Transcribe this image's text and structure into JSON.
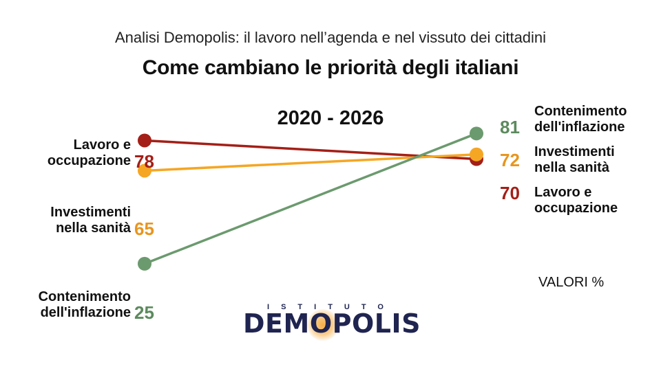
{
  "header": {
    "subtitle": "Analisi Demopolis: il lavoro nell’agenda e nel vissuto dei cittadini",
    "title": "Come cambiano le priorità degli italiani",
    "period": "2020 - 2026"
  },
  "note": "VALORI %",
  "logo": {
    "top_text": "ISTITUTO",
    "name": "DEMOPOLIS"
  },
  "chart_data": {
    "type": "line",
    "x": [
      "2020",
      "2026"
    ],
    "unit": "%",
    "series": [
      {
        "name": "Lavoro e occupazione",
        "label_lines": [
          "Lavoro e",
          "occupazione"
        ],
        "values": [
          78,
          70
        ],
        "color": "#a31f17"
      },
      {
        "name": "Investimenti nella sanità",
        "label_lines": [
          "Investimenti",
          "nella sanità"
        ],
        "values": [
          65,
          72
        ],
        "color": "#f5a623",
        "value_color": "#e8951e"
      },
      {
        "name": "Contenimento dell'inflazione",
        "label_lines": [
          "Contenimento",
          "dell'inflazione"
        ],
        "values": [
          25,
          81
        ],
        "color": "#6b9a6e",
        "value_color": "#5c8a5e"
      }
    ]
  }
}
